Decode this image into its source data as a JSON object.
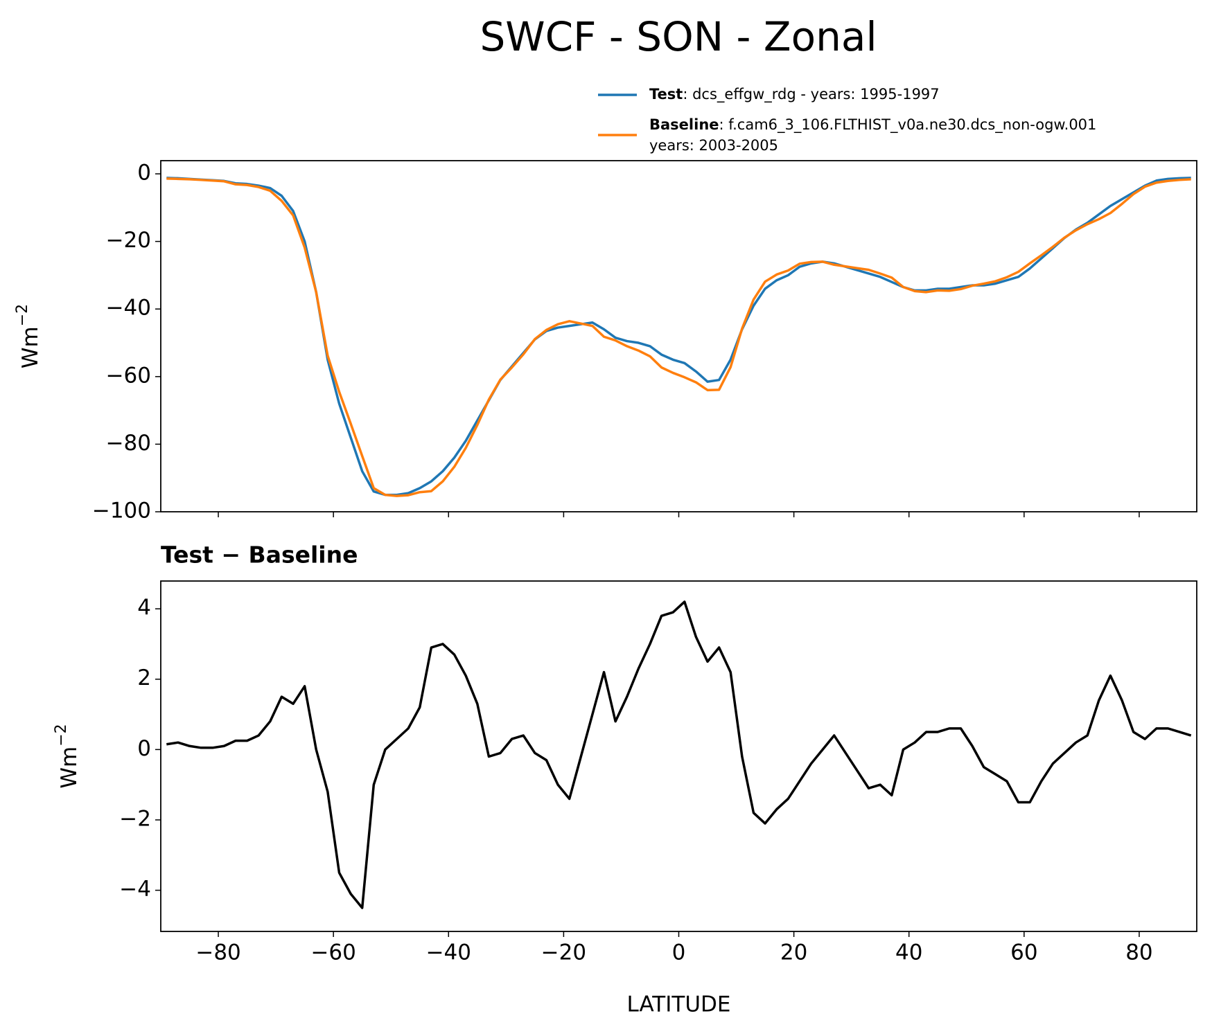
{
  "title": "SWCF - SON - Zonal",
  "chart_data": [
    {
      "type": "line",
      "ylabel": "Wm",
      "ylabel_exponent": "−2",
      "x": [
        -89,
        -87,
        -85,
        -83,
        -81,
        -79,
        -77,
        -75,
        -73,
        -71,
        -69,
        -67,
        -65,
        -63,
        -61,
        -59,
        -57,
        -55,
        -53,
        -51,
        -49,
        -47,
        -45,
        -43,
        -41,
        -39,
        -37,
        -35,
        -33,
        -31,
        -29,
        -27,
        -25,
        -23,
        -21,
        -19,
        -17,
        -15,
        -13,
        -11,
        -9,
        -7,
        -5,
        -3,
        -1,
        1,
        3,
        5,
        7,
        9,
        11,
        13,
        15,
        17,
        19,
        21,
        23,
        25,
        27,
        29,
        31,
        33,
        35,
        37,
        39,
        41,
        43,
        45,
        47,
        49,
        51,
        53,
        55,
        57,
        59,
        61,
        63,
        65,
        67,
        69,
        71,
        73,
        75,
        77,
        79,
        81,
        83,
        85,
        87,
        89
      ],
      "series": [
        {
          "name": "Test",
          "description": [
            ": dcs_effgw_rdg - years: 1995-1997"
          ],
          "color": "#1f77b4",
          "values": [
            -1.2,
            -1.3,
            -1.5,
            -1.7,
            -1.9,
            -2.1,
            -2.8,
            -3.0,
            -3.5,
            -4.2,
            -6.5,
            -11,
            -20,
            -35,
            -55,
            -68,
            -78,
            -88,
            -94,
            -95,
            -95,
            -94.5,
            -93,
            -91,
            -88,
            -84,
            -79,
            -73,
            -67,
            -61,
            -57,
            -53,
            -49,
            -46.5,
            -45.5,
            -45,
            -44.5,
            -44,
            -46,
            -48.5,
            -49.5,
            -50,
            -51,
            -53.5,
            -55,
            -56,
            -58.5,
            -61.5,
            -61,
            -55,
            -46,
            -39,
            -34,
            -31.5,
            -30,
            -27.5,
            -26.5,
            -26,
            -26.5,
            -27.5,
            -28.5,
            -29.5,
            -30.5,
            -32,
            -33.5,
            -34.5,
            -34.5,
            -34,
            -34,
            -33.5,
            -33,
            -33,
            -32.5,
            -31.5,
            -30.5,
            -28,
            -25,
            -22,
            -19,
            -16.5,
            -14.5,
            -12,
            -9.5,
            -7.5,
            -5.5,
            -3.5,
            -2,
            -1.5,
            -1.3,
            -1.2
          ]
        },
        {
          "name": "Baseline",
          "description": [
            ": f.cam6_3_106.FLTHIST_v0a.ne30.dcs_non-ogw.001",
            "years: 2003-2005"
          ],
          "color": "#ff7f0e",
          "values": [
            -1.4,
            -1.5,
            -1.6,
            -1.8,
            -2.0,
            -2.2,
            -3.1,
            -3.3,
            -3.9,
            -5.0,
            -8.0,
            -12.3,
            -21.8,
            -35,
            -53.8,
            -64.5,
            -73.9,
            -83.5,
            -93,
            -95,
            -95.3,
            -95.1,
            -94.2,
            -93.9,
            -91,
            -86.7,
            -81.1,
            -74.3,
            -66.8,
            -60.9,
            -57.3,
            -53.4,
            -48.9,
            -46.2,
            -44.5,
            -43.6,
            -44.3,
            -45,
            -48.2,
            -49.3,
            -51,
            -52.3,
            -54,
            -57.3,
            -58.9,
            -60.2,
            -61.7,
            -64,
            -63.9,
            -57.2,
            -45.8,
            -37.2,
            -31.9,
            -29.8,
            -28.6,
            -26.6,
            -26.1,
            -26,
            -26.9,
            -27.4,
            -27.9,
            -28.4,
            -29.5,
            -30.7,
            -33.5,
            -34.7,
            -35,
            -34.5,
            -34.6,
            -34.1,
            -33.1,
            -32.5,
            -31.8,
            -30.6,
            -29,
            -26.5,
            -24.1,
            -21.6,
            -18.9,
            -16.7,
            -14.9,
            -13.4,
            -11.6,
            -8.9,
            -6,
            -3.8,
            -2.6,
            -2.1,
            -1.8,
            -1.6
          ]
        }
      ],
      "xlim": [
        -90,
        90
      ],
      "xticks": [
        -80,
        -60,
        -40,
        -20,
        0,
        20,
        40,
        60,
        80
      ],
      "ylim": [
        -100,
        3.9
      ],
      "yticks": [
        {
          "value": -100,
          "label": "−100"
        },
        {
          "value": -80,
          "label": "−80"
        },
        {
          "value": -60,
          "label": "−60"
        },
        {
          "value": -40,
          "label": "−40"
        },
        {
          "value": -20,
          "label": "−20"
        },
        0
      ]
    },
    {
      "type": "line",
      "title": "Test − Baseline",
      "xlabel": "LATITUDE",
      "ylabel": "Wm",
      "ylabel_exponent": "−2",
      "x": [
        -89,
        -87,
        -85,
        -83,
        -81,
        -79,
        -77,
        -75,
        -73,
        -71,
        -69,
        -67,
        -65,
        -63,
        -61,
        -59,
        -57,
        -55,
        -53,
        -51,
        -49,
        -47,
        -45,
        -43,
        -41,
        -39,
        -37,
        -35,
        -33,
        -31,
        -29,
        -27,
        -25,
        -23,
        -21,
        -19,
        -17,
        -15,
        -13,
        -11,
        -9,
        -7,
        -5,
        -3,
        -1,
        1,
        3,
        5,
        7,
        9,
        11,
        13,
        15,
        17,
        19,
        21,
        23,
        25,
        27,
        29,
        31,
        33,
        35,
        37,
        39,
        41,
        43,
        45,
        47,
        49,
        51,
        53,
        55,
        57,
        59,
        61,
        63,
        65,
        67,
        69,
        71,
        73,
        75,
        77,
        79,
        81,
        83,
        85,
        87,
        89
      ],
      "color": "#000000",
      "values": [
        0.15,
        0.2,
        0.1,
        0.05,
        0.05,
        0.1,
        0.25,
        0.25,
        0.4,
        0.8,
        1.5,
        1.3,
        1.8,
        0.0,
        -1.2,
        -3.5,
        -4.1,
        -4.5,
        -1.0,
        0.0,
        0.3,
        0.6,
        1.2,
        2.9,
        3.0,
        2.7,
        2.1,
        1.3,
        -0.2,
        -0.1,
        0.3,
        0.4,
        -0.1,
        -0.3,
        -1.0,
        -1.4,
        -0.2,
        1.0,
        2.2,
        0.8,
        1.5,
        2.3,
        3.0,
        3.8,
        3.9,
        4.2,
        3.2,
        2.5,
        2.9,
        2.2,
        -0.2,
        -1.8,
        -2.1,
        -1.7,
        -1.4,
        -0.9,
        -0.4,
        0.0,
        0.4,
        -0.1,
        -0.6,
        -1.1,
        -1.0,
        -1.3,
        0.0,
        0.2,
        0.5,
        0.5,
        0.6,
        0.6,
        0.1,
        -0.5,
        -0.7,
        -0.9,
        -1.5,
        -1.5,
        -0.9,
        -0.4,
        -0.1,
        0.2,
        0.4,
        1.4,
        2.1,
        1.4,
        0.5,
        0.3,
        0.6,
        0.6,
        0.5,
        0.4
      ],
      "xlim": [
        -90,
        90
      ],
      "xticks": [
        {
          "value": -80,
          "label": "−80"
        },
        {
          "value": -60,
          "label": "−60"
        },
        {
          "value": -40,
          "label": "−40"
        },
        {
          "value": -20,
          "label": "−20"
        },
        0,
        20,
        40,
        60,
        80
      ],
      "ylim": [
        -5.17,
        4.79
      ],
      "yticks": [
        {
          "value": -4,
          "label": "−4"
        },
        {
          "value": -2,
          "label": "−2"
        },
        0,
        2,
        4
      ]
    }
  ]
}
